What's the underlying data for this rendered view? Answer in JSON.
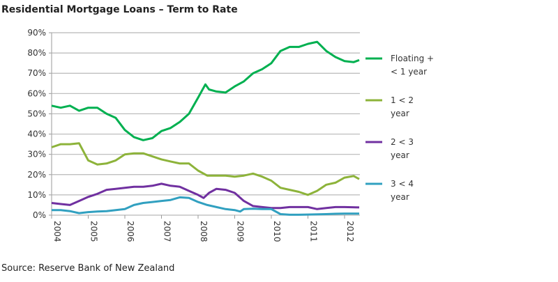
{
  "chart_data": {
    "type": "line",
    "title": "Residential Mortgage Loans – Term to Rate",
    "source": "Source: Reserve Bank of New Zealand",
    "xlabel": "",
    "ylabel": "",
    "xlim": [
      2004,
      2012.6
    ],
    "ylim": [
      0,
      90
    ],
    "y_ticks": [
      "0%",
      "10%",
      "20%",
      "30%",
      "40%",
      "50%",
      "60%",
      "70%",
      "80%",
      "90%"
    ],
    "x_ticks": [
      "2004",
      "2005",
      "2006",
      "2007",
      "2008",
      "2009",
      "2010",
      "2011",
      "2012"
    ],
    "grid": true,
    "legend_position": "right",
    "series": [
      {
        "name": "Floating + < 1 year",
        "legend_lines": [
          "Floating +",
          "< 1 year"
        ],
        "color": "#00b050",
        "x": [
          2004,
          2004.25,
          2004.5,
          2004.75,
          2005,
          2005.25,
          2005.5,
          2005.75,
          2006,
          2006.25,
          2006.5,
          2006.75,
          2007,
          2007.25,
          2007.5,
          2007.75,
          2008,
          2008.2,
          2008.3,
          2008.5,
          2008.75,
          2009,
          2009.25,
          2009.5,
          2009.75,
          2010,
          2010.25,
          2010.5,
          2010.75,
          2011,
          2011.25,
          2011.5,
          2011.75,
          2012,
          2012.25,
          2012.4
        ],
        "y": [
          54,
          53,
          54,
          51.5,
          53,
          53,
          50,
          48,
          42,
          38.5,
          37,
          38,
          41.5,
          43,
          46,
          50,
          58,
          64.5,
          62,
          61,
          60.5,
          63.5,
          66,
          70,
          72,
          75,
          81,
          83,
          83,
          84.5,
          85.5,
          81,
          78,
          76,
          75.5,
          76.5
        ]
      },
      {
        "name": "1 < 2 year",
        "legend_lines": [
          "1 <  2",
          "year"
        ],
        "color": "#8db33a",
        "x": [
          2004,
          2004.25,
          2004.5,
          2004.75,
          2005,
          2005.25,
          2005.5,
          2005.75,
          2006,
          2006.25,
          2006.5,
          2006.75,
          2007,
          2007.25,
          2007.5,
          2007.75,
          2008,
          2008.25,
          2008.5,
          2008.75,
          2009,
          2009.25,
          2009.5,
          2009.75,
          2010,
          2010.25,
          2010.5,
          2010.75,
          2011,
          2011.25,
          2011.5,
          2011.75,
          2012,
          2012.25,
          2012.4
        ],
        "y": [
          33.5,
          35,
          35,
          35.5,
          27,
          25,
          25.5,
          27,
          30,
          30.5,
          30.5,
          29,
          27.5,
          26.5,
          25.5,
          25.5,
          22,
          19.5,
          19.5,
          19.5,
          19,
          19.5,
          20.5,
          19,
          17,
          13.5,
          12.5,
          11.5,
          10,
          12,
          15,
          16,
          18.5,
          19.3,
          17.8
        ]
      },
      {
        "name": "2 < 3 year",
        "legend_lines": [
          "2 <  3",
          "year"
        ],
        "color": "#7030a0",
        "x": [
          2004,
          2004.25,
          2004.5,
          2004.75,
          2005,
          2005.25,
          2005.5,
          2005.75,
          2006,
          2006.25,
          2006.5,
          2006.75,
          2007,
          2007.25,
          2007.5,
          2007.75,
          2008,
          2008.15,
          2008.3,
          2008.5,
          2008.75,
          2009,
          2009.25,
          2009.5,
          2009.75,
          2010,
          2010.25,
          2010.5,
          2010.75,
          2011,
          2011.25,
          2011.5,
          2011.75,
          2012,
          2012.4
        ],
        "y": [
          6,
          5.5,
          5,
          7,
          9,
          10.5,
          12.5,
          13,
          13.5,
          14,
          14,
          14.5,
          15.5,
          14.5,
          14,
          12,
          10,
          8.5,
          11,
          13,
          12.5,
          11,
          7,
          4.5,
          4,
          3.5,
          3.5,
          4,
          4,
          4,
          3,
          3.5,
          4,
          4,
          3.8
        ]
      },
      {
        "name": "3 < 4 year",
        "legend_lines": [
          "3 <  4",
          "year"
        ],
        "color": "#31a0c0",
        "x": [
          2004,
          2004.25,
          2004.5,
          2004.75,
          2005,
          2005.25,
          2005.5,
          2005.75,
          2006,
          2006.25,
          2006.5,
          2006.75,
          2007,
          2007.25,
          2007.5,
          2007.75,
          2008,
          2008.25,
          2008.5,
          2008.75,
          2009,
          2009.15,
          2009.25,
          2009.5,
          2009.75,
          2010,
          2010.25,
          2010.5,
          2010.75,
          2011,
          2011.5,
          2011.75,
          2012,
          2012.4
        ],
        "y": [
          2.5,
          2.5,
          2,
          1,
          1.5,
          1.8,
          2,
          2.5,
          3,
          5,
          6,
          6.5,
          7,
          7.5,
          8.8,
          8.5,
          6.5,
          5,
          4,
          3,
          2.5,
          1.8,
          3,
          3.2,
          3,
          3,
          0.5,
          0.2,
          0.2,
          0.3,
          0.5,
          0.7,
          0.8,
          0.8
        ]
      }
    ]
  }
}
